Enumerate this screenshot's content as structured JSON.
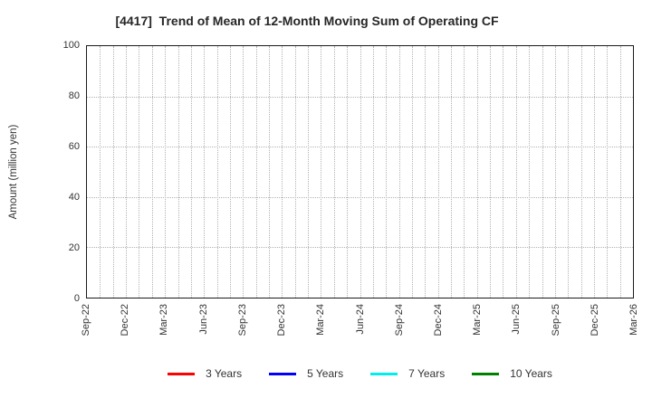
{
  "chart_data": {
    "type": "line",
    "title": "[4417]  Trend of Mean of 12-Month Moving Sum of Operating CF",
    "xlabel": "",
    "ylabel": "Amount (million yen)",
    "ylim": [
      0,
      100
    ],
    "yticks": [
      0,
      20,
      40,
      60,
      80,
      100
    ],
    "x_tick_labels": [
      "Sep-22",
      "Dec-22",
      "Mar-23",
      "Jun-23",
      "Sep-23",
      "Dec-23",
      "Mar-24",
      "Jun-24",
      "Sep-24",
      "Dec-24",
      "Mar-25",
      "Jun-25",
      "Sep-25",
      "Dec-25",
      "Mar-26"
    ],
    "months_between_labels": 3,
    "grid": true,
    "legend_position": "bottom",
    "series": [
      {
        "name": "3 Years",
        "color": "#ff0000",
        "values": []
      },
      {
        "name": "5 Years",
        "color": "#0000ff",
        "values": []
      },
      {
        "name": "7 Years",
        "color": "#00eeee",
        "values": []
      },
      {
        "name": "10 Years",
        "color": "#008000",
        "values": []
      }
    ]
  }
}
